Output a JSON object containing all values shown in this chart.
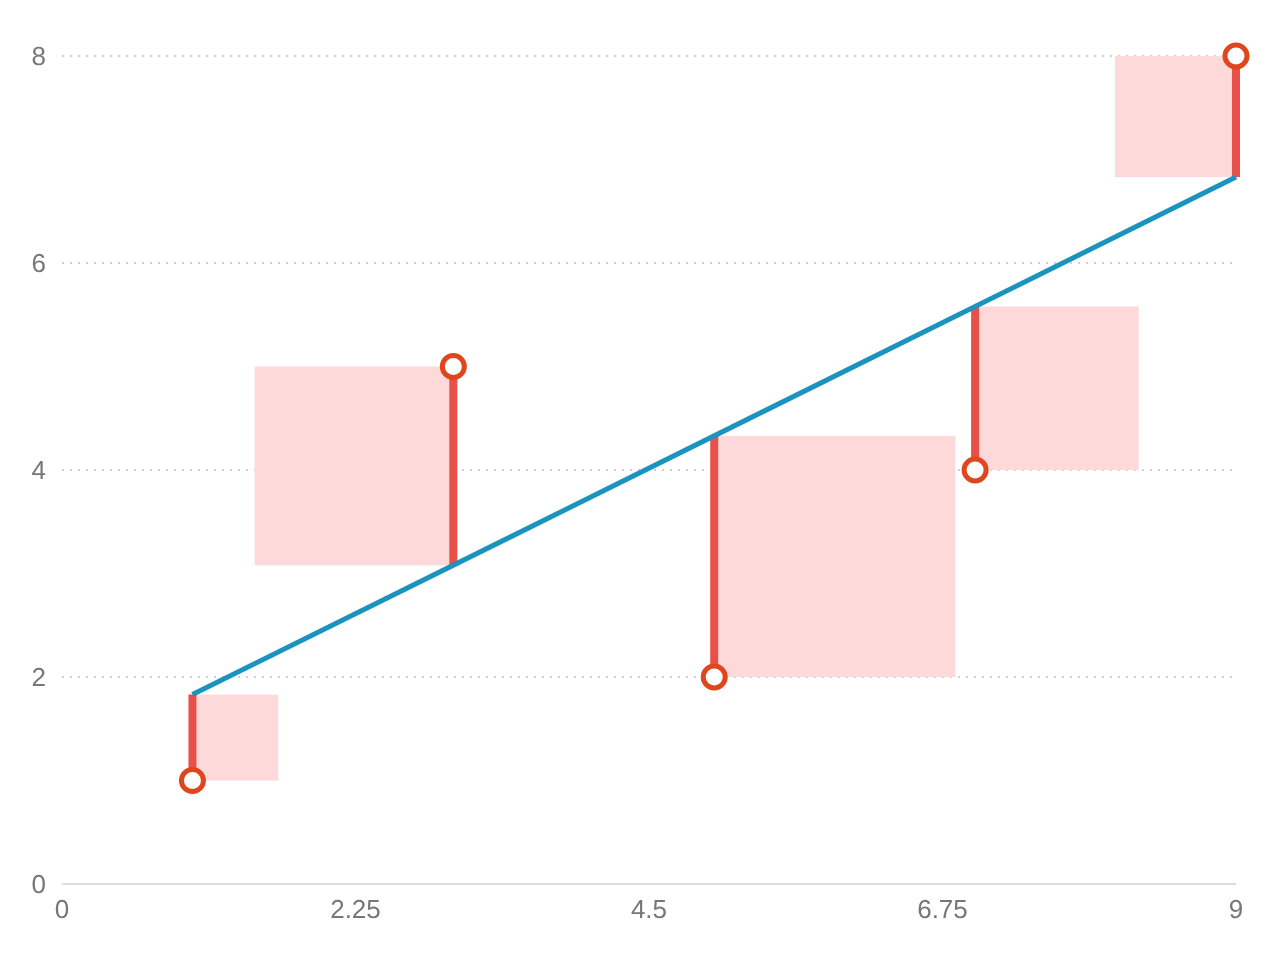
{
  "chart_data": {
    "type": "scatter",
    "xlim": [
      0,
      9
    ],
    "xticks": [
      0,
      2.25,
      4.5,
      6.75,
      9
    ],
    "ylim": [
      0,
      8
    ],
    "yticks": [
      0,
      2,
      4,
      6,
      8
    ],
    "grid": "y",
    "series": [
      {
        "marker": "circle",
        "color": "#e0461e",
        "x": [
          1,
          3,
          5,
          7,
          9
        ],
        "values": [
          1,
          5,
          2,
          4,
          8
        ]
      },
      {
        "type": "line",
        "marker": "none",
        "color": "#1a94bf",
        "x": [
          1,
          9
        ],
        "values": [
          1.83,
          6.83
        ]
      }
    ]
  }
}
